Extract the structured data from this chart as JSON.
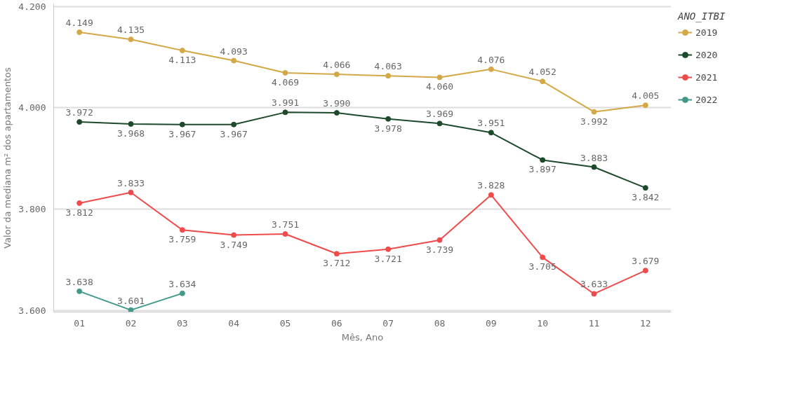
{
  "chart_data": {
    "type": "line",
    "xlabel": "Mês, Ano",
    "ylabel": "Valor da mediana m² dos apartamentos",
    "legend_title": "ANO_ITBI",
    "categories": [
      "01",
      "02",
      "03",
      "04",
      "05",
      "06",
      "07",
      "08",
      "09",
      "10",
      "11",
      "12"
    ],
    "series": [
      {
        "name": "2019",
        "color": "#d4a846",
        "values": [
          4149,
          4135,
          4113,
          4093,
          4069,
          4066,
          4063,
          4060,
          4076,
          4052,
          3992,
          4005
        ],
        "value_labels": [
          "4.149",
          "4.135",
          "4.113",
          "4.093",
          "4.069",
          "4.066",
          "4.063",
          "4.060",
          "4.076",
          "4.052",
          "3.992",
          "4.005"
        ]
      },
      {
        "name": "2020",
        "color": "#1e4a2c",
        "values": [
          3972,
          3968,
          3967,
          3967,
          3991,
          3990,
          3978,
          3969,
          3951,
          3897,
          3883,
          3842
        ],
        "value_labels": [
          "3.972",
          "3.968",
          "3.967",
          "3.967",
          "3.991",
          "3.990",
          "3.978",
          "3.969",
          "3.951",
          "3.897",
          "3.883",
          "3.842"
        ]
      },
      {
        "name": "2021",
        "color": "#f04a4a",
        "values": [
          3812,
          3833,
          3759,
          3749,
          3751,
          3712,
          3721,
          3739,
          3828,
          3705,
          3633,
          3679
        ],
        "value_labels": [
          "3.812",
          "3.833",
          "3.759",
          "3.749",
          "3.751",
          "3.712",
          "3.721",
          "3.739",
          "3.828",
          "3.705",
          "3.633",
          "3.679"
        ]
      },
      {
        "name": "2022",
        "color": "#3f9a8a",
        "values": [
          3638,
          3601,
          3634,
          null,
          null,
          null,
          null,
          null,
          null,
          null,
          null,
          null
        ],
        "value_labels": [
          "3.638",
          "3.601",
          "3.634",
          null,
          null,
          null,
          null,
          null,
          null,
          null,
          null,
          null
        ]
      }
    ],
    "ylim": [
      3597,
      4205
    ],
    "yticks": [
      {
        "value": 3600,
        "label": "3.600"
      },
      {
        "value": 3800,
        "label": "3.800"
      },
      {
        "value": 4000,
        "label": "4.000"
      },
      {
        "value": 4200,
        "label": "4.200"
      }
    ],
    "grid": "y",
    "legend": "top right",
    "marker": "circle",
    "line_style": "solid"
  }
}
